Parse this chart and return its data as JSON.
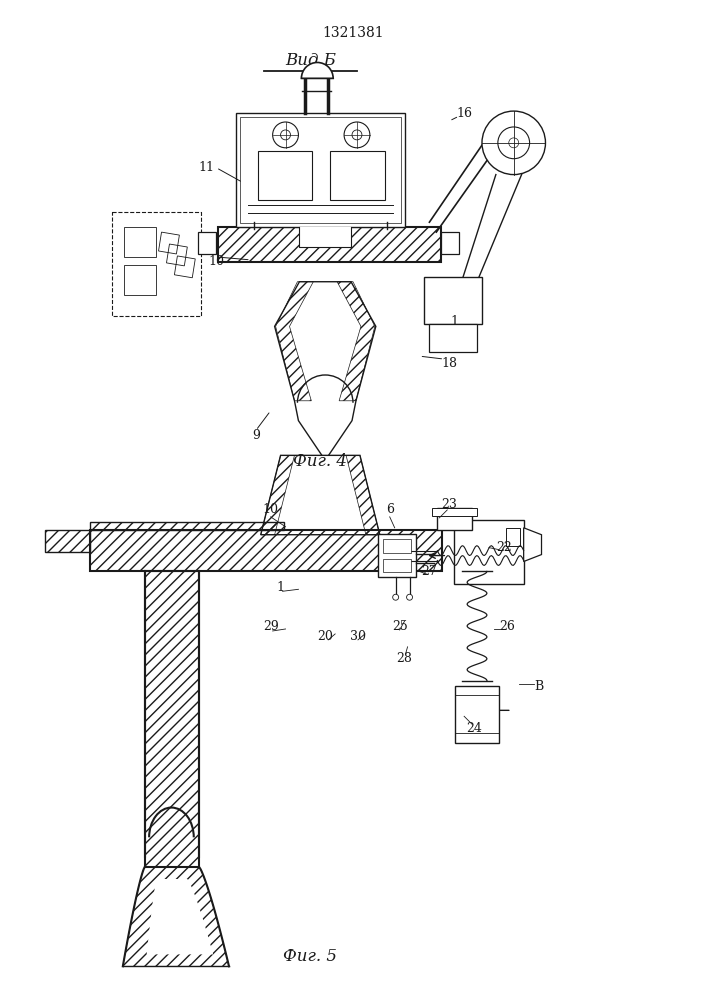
{
  "patent_number": "1321381",
  "view_label": "Вид Б",
  "fig4_label": "Фиг. 4",
  "fig5_label": "Фиг. 5",
  "background_color": "#ffffff",
  "line_color": "#1a1a1a"
}
